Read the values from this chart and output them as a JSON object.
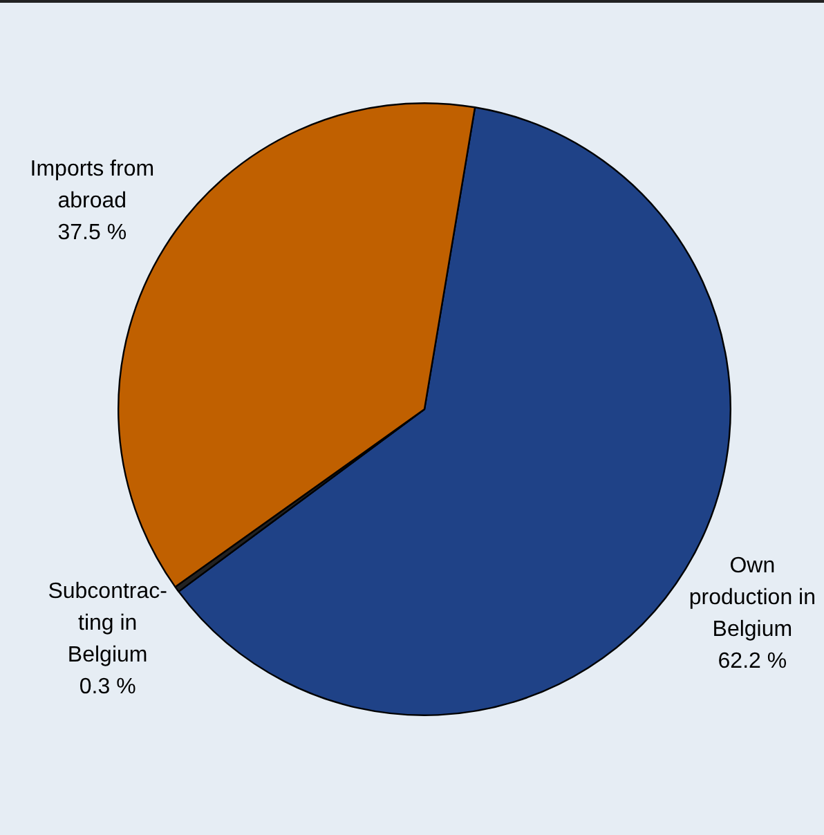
{
  "chart_data": {
    "type": "pie",
    "categories": [
      "Own\nproduction in\nBelgium",
      "Subcontrac-\nting in\nBelgium",
      "Imports from\nabroad"
    ],
    "values": [
      62.2,
      0.3,
      37.5
    ],
    "colors": [
      "#1f4287",
      "#222222",
      "#c06000"
    ],
    "value_labels": [
      "62.2 %",
      "0.3 %",
      "37.5 %"
    ],
    "legend": false
  }
}
